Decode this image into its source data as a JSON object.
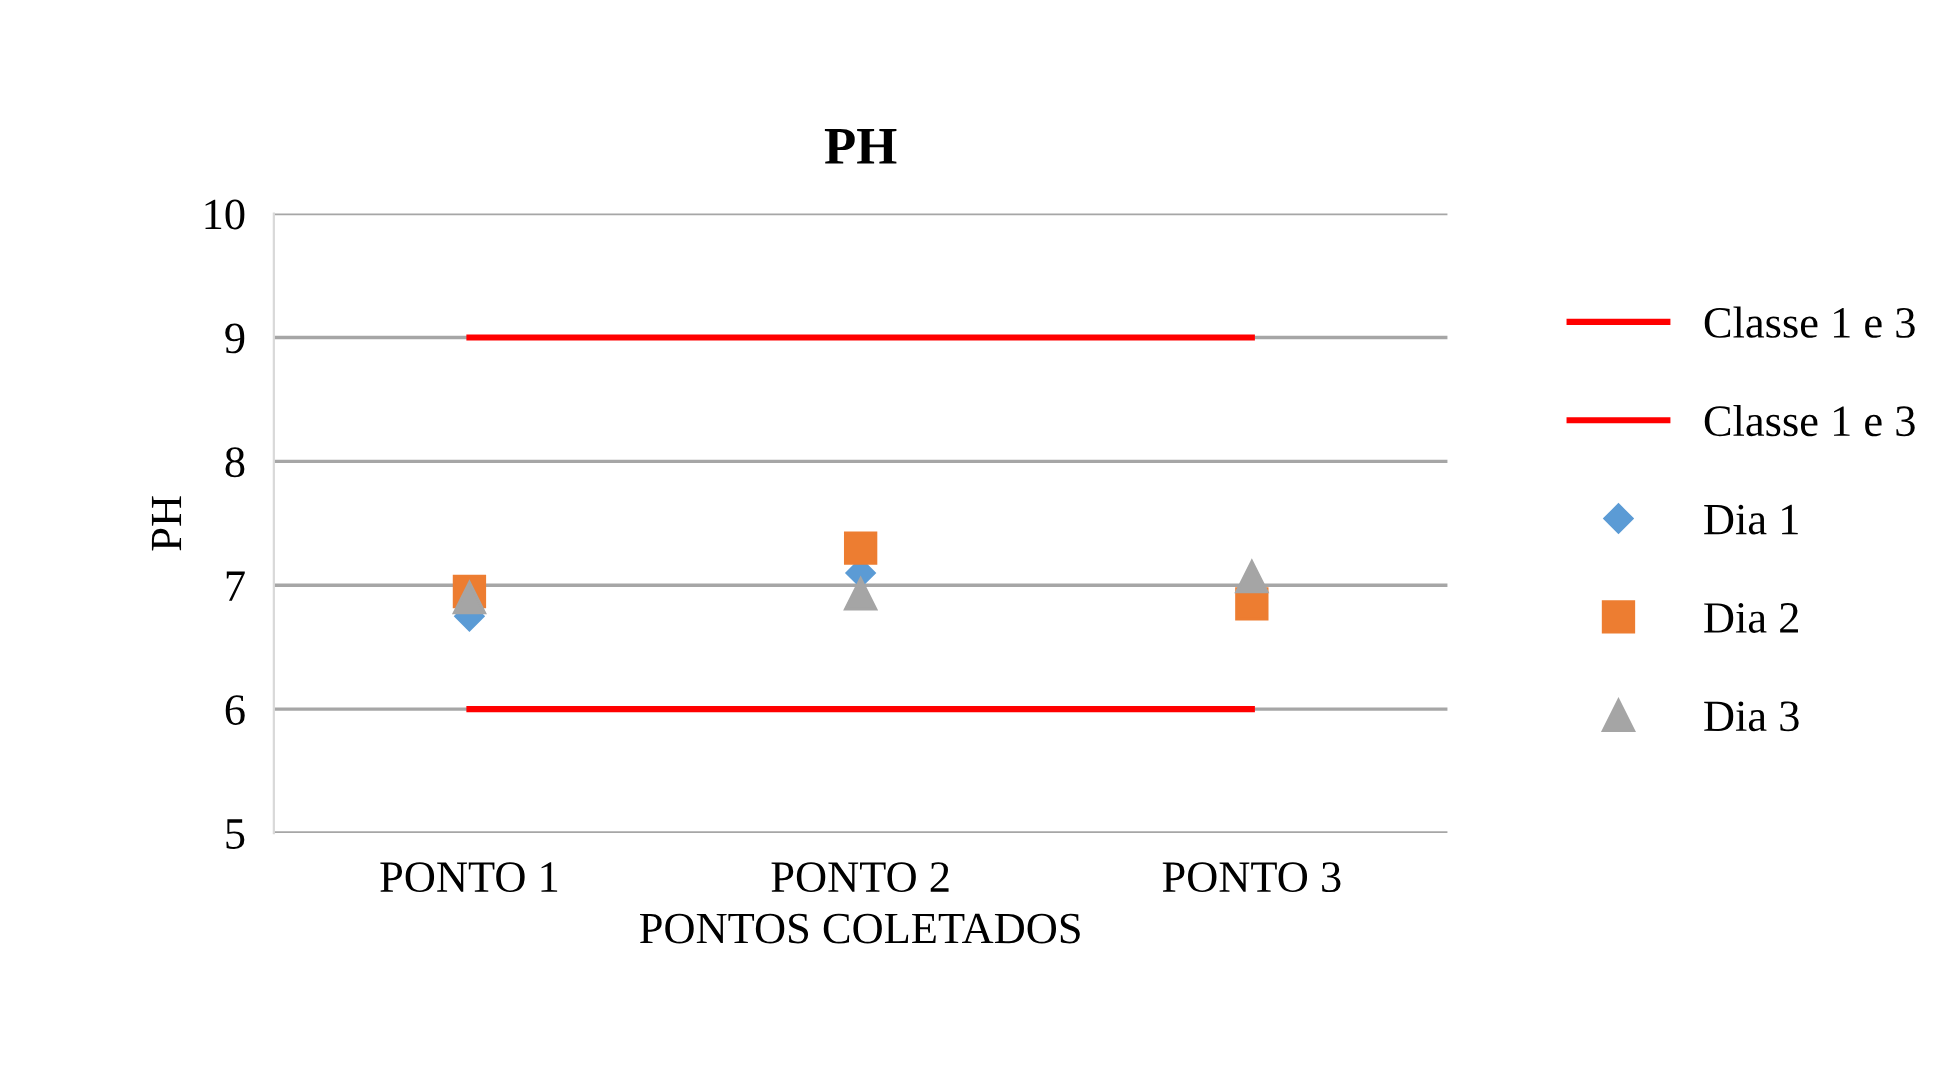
{
  "chart_data": {
    "type": "scatter",
    "title": "PH",
    "xlabel": "PONTOS COLETADOS",
    "ylabel": "PH",
    "categories": [
      "PONTO 1",
      "PONTO 2",
      "PONTO 3"
    ],
    "series": [
      {
        "name": "Classe 1 e 3",
        "type": "line",
        "color": "#ff0000",
        "values": [
          9,
          9,
          9
        ],
        "marker": "none"
      },
      {
        "name": "Classe 1 e 3",
        "type": "line",
        "color": "#ff0000",
        "values": [
          6,
          6,
          6
        ],
        "marker": "none"
      },
      {
        "name": "Dia 1",
        "color": "#5b9bd5",
        "marker": "diamond",
        "values": [
          6.75,
          7.1,
          null
        ]
      },
      {
        "name": "Dia 2",
        "color": "#ed7d31",
        "marker": "square",
        "values": [
          6.95,
          7.3,
          6.85
        ]
      },
      {
        "name": "Dia 3",
        "color": "#a5a5a5",
        "marker": "triangle",
        "values": [
          6.9,
          6.93,
          7.07
        ]
      }
    ],
    "ylim": [
      5,
      10
    ],
    "yticks": [
      5,
      6,
      7,
      8,
      9,
      10
    ],
    "grid": "y",
    "legend": "right"
  }
}
